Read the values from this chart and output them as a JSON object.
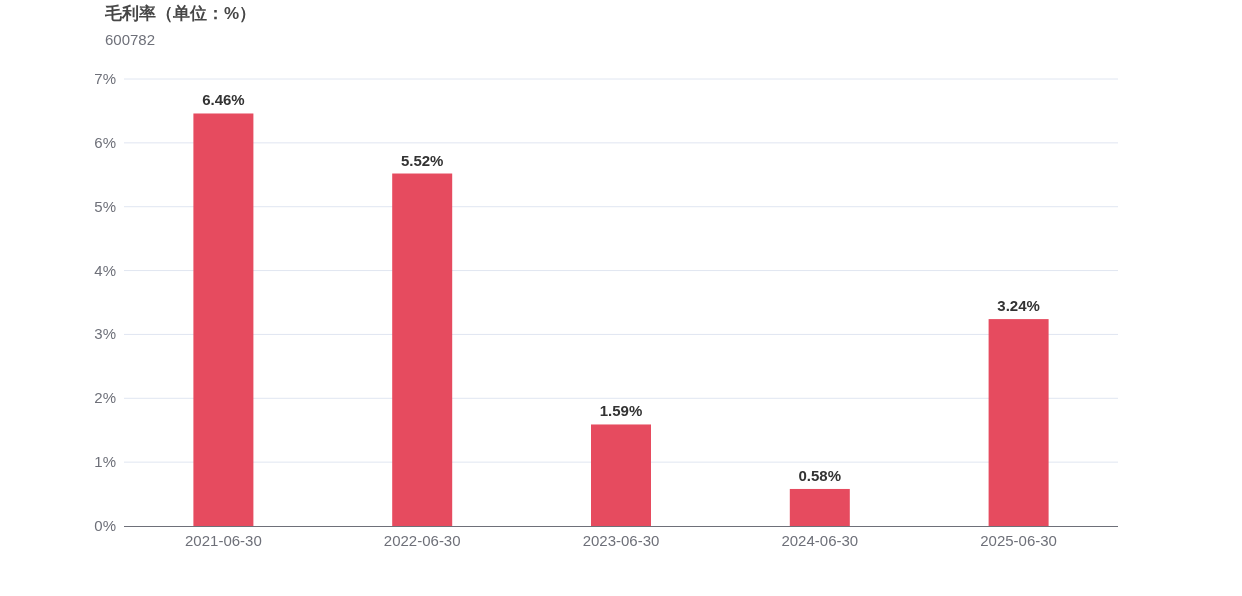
{
  "chart_data": {
    "type": "bar",
    "title": "毛利率（单位：%）",
    "subtitle": "600782",
    "categories": [
      "2021-06-30",
      "2022-06-30",
      "2023-06-30",
      "2024-06-30",
      "2025-06-30"
    ],
    "values": [
      6.46,
      5.52,
      1.59,
      0.58,
      3.24
    ],
    "value_labels": [
      "6.46%",
      "5.52%",
      "1.59%",
      "0.58%",
      "3.24%"
    ],
    "color": "#e64b5f",
    "ylim": [
      0,
      7
    ],
    "yticks": [
      {
        "value": 0,
        "label": "0%"
      },
      {
        "value": 1,
        "label": "1%"
      },
      {
        "value": 2,
        "label": "2%"
      },
      {
        "value": 3,
        "label": "3%"
      },
      {
        "value": 4,
        "label": "4%"
      },
      {
        "value": 5,
        "label": "5%"
      },
      {
        "value": 6,
        "label": "6%"
      },
      {
        "value": 7,
        "label": "7%"
      }
    ],
    "grid": "y"
  }
}
